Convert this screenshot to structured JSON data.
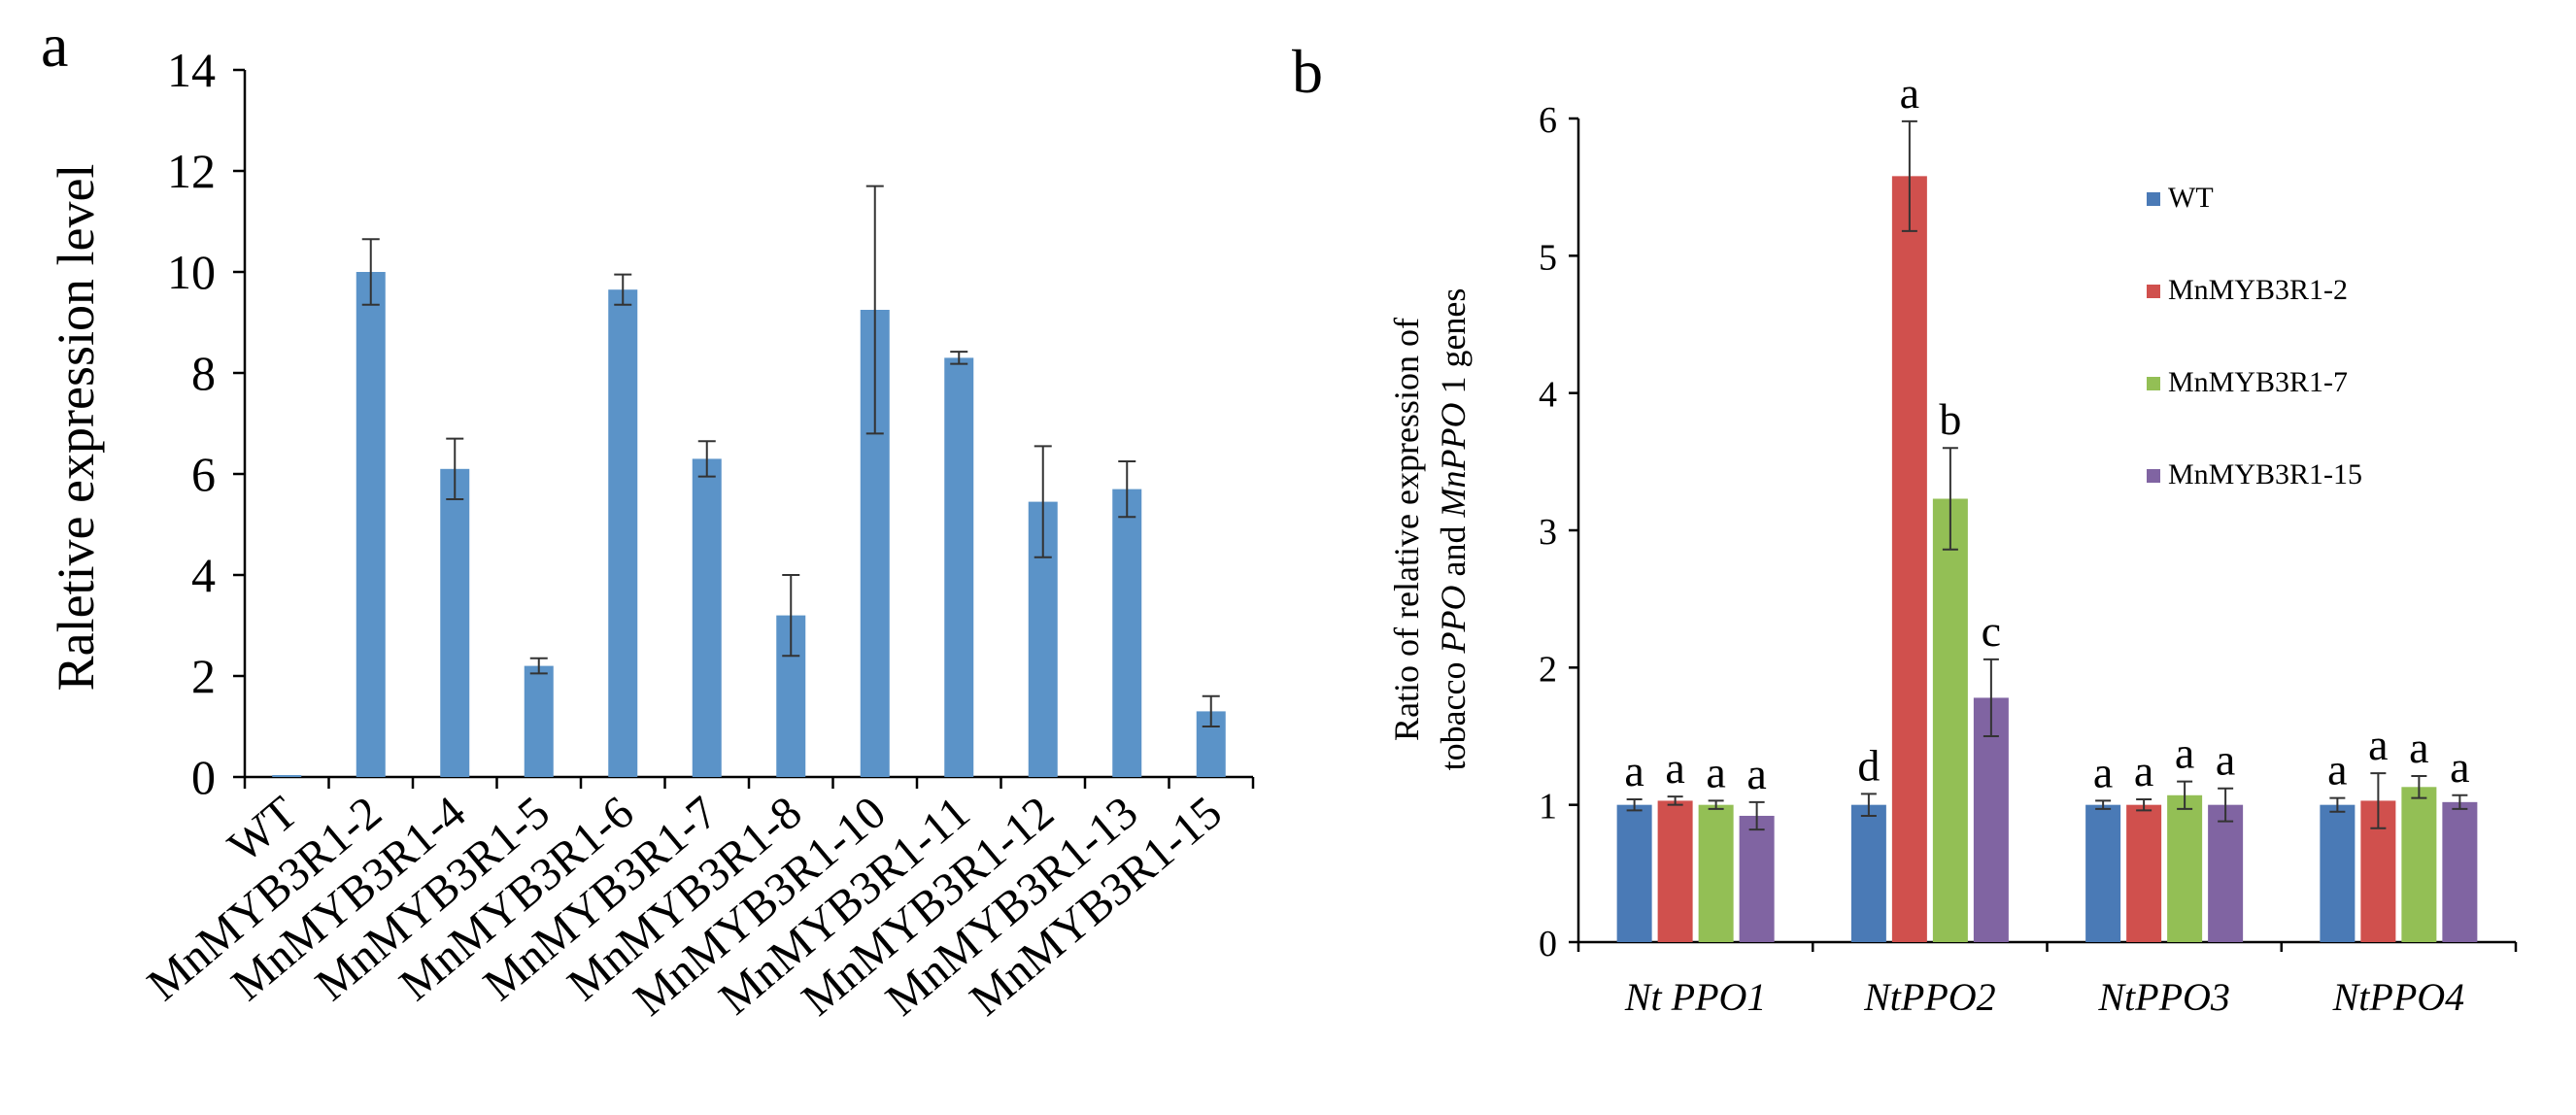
{
  "chart_data": [
    {
      "panel_label": "a",
      "type": "bar",
      "title": "",
      "xlabel": "",
      "ylabel": "Raletive expression level",
      "ylim": [
        0,
        14
      ],
      "yticks": [
        "0",
        "2",
        "4",
        "6",
        "8",
        "10",
        "12",
        "14"
      ],
      "categories": [
        "WT",
        "MnMYB3R1-2",
        "MnMYB3R1-4",
        "MnMYB3R1-5",
        "MnMYB3R1-6",
        "MnMYB3R1-7",
        "MnMYB3R1-8",
        "MnMYB3R1-10",
        "MnMYB3R1-11",
        "MnMYB3R1-12",
        "MnMYB3R1-13",
        "MnMYB3R1-15"
      ],
      "values": [
        0.02,
        10.0,
        6.1,
        2.2,
        9.65,
        6.3,
        3.2,
        9.25,
        8.3,
        5.45,
        5.7,
        1.3
      ],
      "errors": [
        0.0,
        0.65,
        0.6,
        0.15,
        0.3,
        0.35,
        0.8,
        2.45,
        0.12,
        1.1,
        0.55,
        0.3
      ],
      "color": "#5b93c8"
    },
    {
      "panel_label": "b",
      "type": "bar",
      "title": "",
      "xlabel": "",
      "ylabel_line1": "Ratio of relative expression of",
      "ylabel_line2_parts": [
        "tobacco ",
        "PPO",
        " and ",
        "MnPPO",
        " 1 genes"
      ],
      "ylim": [
        0,
        6
      ],
      "yticks": [
        "0",
        "1",
        "2",
        "3",
        "4",
        "5",
        "6"
      ],
      "categories": [
        "Nt PPO1",
        "NtPPO2",
        "NtPPO3",
        "NtPPO4"
      ],
      "series": [
        {
          "name": "WT",
          "color": "#4a7ab6",
          "values": [
            1.0,
            1.0,
            1.0,
            1.0
          ],
          "errors": [
            0.04,
            0.08,
            0.03,
            0.05
          ],
          "letters": [
            "a",
            "d",
            "a",
            "a"
          ]
        },
        {
          "name": "MnMYB3R1-2",
          "color": "#d0504d",
          "values": [
            1.03,
            5.58,
            1.0,
            1.03
          ],
          "errors": [
            0.03,
            0.4,
            0.04,
            0.2
          ],
          "letters": [
            "a",
            "a",
            "a",
            "a"
          ]
        },
        {
          "name": "MnMYB3R1-7",
          "color": "#93bf55",
          "values": [
            1.0,
            3.23,
            1.07,
            1.13
          ],
          "errors": [
            0.03,
            0.37,
            0.1,
            0.08
          ],
          "letters": [
            "a",
            "b",
            "a",
            "a"
          ]
        },
        {
          "name": "MnMYB3R1-15",
          "color": "#8064a2",
          "values": [
            0.92,
            1.78,
            1.0,
            1.02
          ],
          "errors": [
            0.1,
            0.28,
            0.12,
            0.05
          ],
          "letters": [
            "a",
            "c",
            "a",
            "a"
          ]
        }
      ],
      "legend_position": "top-right"
    }
  ]
}
